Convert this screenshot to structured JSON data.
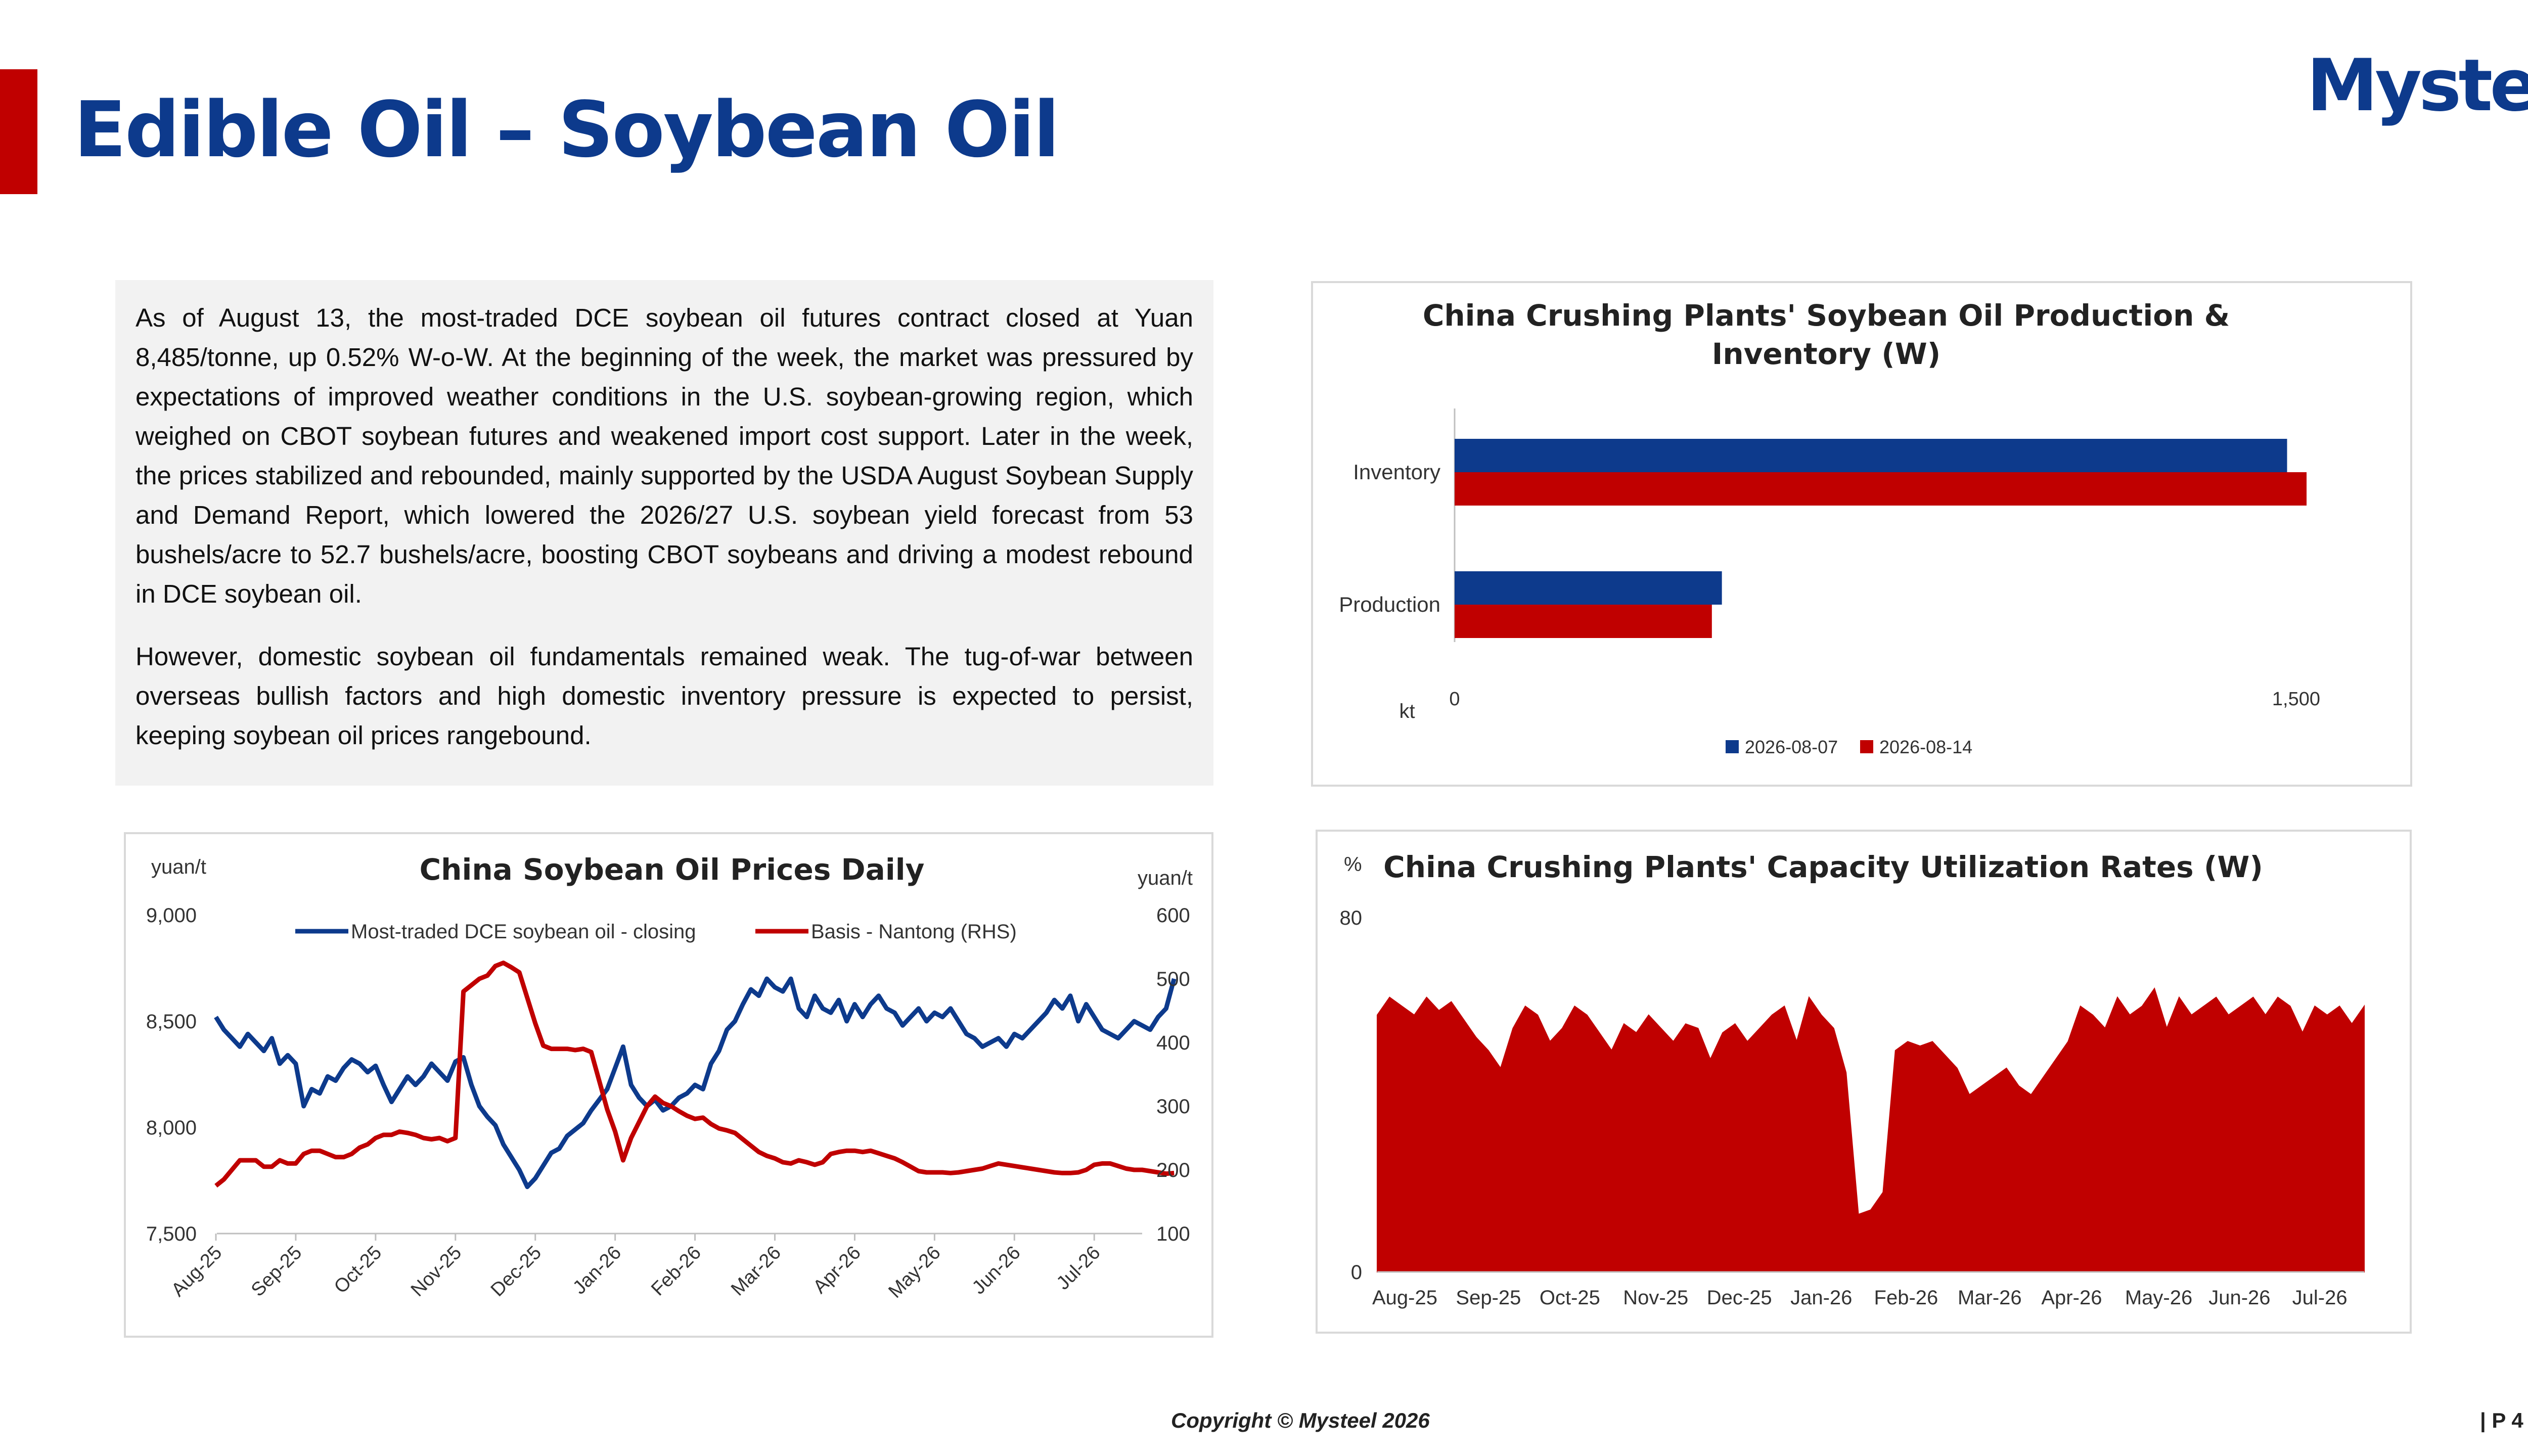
{
  "header": {
    "title": "Edible Oil – Soybean Oil",
    "logo_text": "Mysteel",
    "accent_color": "#c00000",
    "title_color": "#0d3a8c"
  },
  "commentary": {
    "paragraphs": [
      "As of August 13, the most-traded DCE soybean oil futures contract closed at Yuan 8,485/tonne, up 0.52% W-o-W. At the beginning of the week, the market was pressured by expectations of improved weather conditions in the U.S. soybean-growing region, which weighed on CBOT soybean futures and weakened import cost support. Later in the week, the prices stabilized and rebounded, mainly supported by the USDA August Soybean Supply and Demand Report, which lowered the 2026/27 U.S. soybean yield forecast from 53 bushels/acre to 52.7 bushels/acre, boosting CBOT soybeans and driving a modest rebound in DCE soybean oil.",
      "However, domestic soybean oil fundamentals remained weak. The tug-of-war between overseas bullish factors and high domestic inventory pressure is expected to persist, keeping soybean oil prices rangebound."
    ]
  },
  "footer": {
    "copyright": "Copyright © Mysteel 2026",
    "page": "| P 4"
  },
  "chart_data": [
    {
      "id": "production-inventory",
      "type": "bar",
      "orientation": "horizontal",
      "title": "China Crushing Plants' Soybean Oil Production & Inventory (W)",
      "unit_label": "kt",
      "categories": [
        "Inventory",
        "Production"
      ],
      "series": [
        {
          "name": "2026-08-07",
          "color": "#0d3a8c",
          "values": [
            1495,
            480
          ]
        },
        {
          "name": "2026-08-14",
          "color": "#c00000",
          "values": [
            1530,
            462
          ]
        }
      ],
      "xlim": [
        0,
        1500
      ],
      "x_ticks": [
        "0",
        "1,500"
      ],
      "legend": "bottom"
    },
    {
      "id": "prices-daily",
      "type": "line",
      "title": "China Soybean Oil Prices Daily",
      "ylabel_left": "yuan/t",
      "ylabel_right": "yuan/t",
      "ylim_left": [
        7500,
        9000
      ],
      "y_ticks_left": [
        "9,000",
        "8,500",
        "8,000",
        "7,500"
      ],
      "ylim_right": [
        100,
        600
      ],
      "y_ticks_right": [
        "600",
        "500",
        "400",
        "300",
        "200",
        "100"
      ],
      "x_ticks": [
        "Aug-25",
        "Sep-25",
        "Oct-25",
        "Nov-25",
        "Dec-25",
        "Jan-26",
        "Feb-26",
        "Mar-26",
        "Apr-26",
        "May-26",
        "Jun-26",
        "Jul-26"
      ],
      "legend": "top",
      "series": [
        {
          "name": "Most-traded DCE soybean oil - closing",
          "axis": "left",
          "color": "#0d3a8c",
          "x": [
            0,
            0.1,
            0.2,
            0.3,
            0.4,
            0.5,
            0.6,
            0.7,
            0.8,
            0.9,
            1.0,
            1.1,
            1.2,
            1.3,
            1.4,
            1.5,
            1.6,
            1.7,
            1.8,
            1.9,
            2.0,
            2.1,
            2.2,
            2.3,
            2.4,
            2.5,
            2.6,
            2.7,
            2.8,
            2.9,
            3.0,
            3.1,
            3.2,
            3.3,
            3.4,
            3.5,
            3.6,
            3.7,
            3.8,
            3.9,
            4.0,
            4.1,
            4.2,
            4.3,
            4.4,
            4.5,
            4.6,
            4.7,
            4.8,
            4.9,
            5.0,
            5.1,
            5.2,
            5.3,
            5.4,
            5.5,
            5.6,
            5.7,
            5.8,
            5.9,
            6.0,
            6.1,
            6.2,
            6.3,
            6.4,
            6.5,
            6.6,
            6.7,
            6.8,
            6.9,
            7.0,
            7.1,
            7.2,
            7.3,
            7.4,
            7.5,
            7.6,
            7.7,
            7.8,
            7.9,
            8.0,
            8.1,
            8.2,
            8.3,
            8.4,
            8.5,
            8.6,
            8.7,
            8.8,
            8.9,
            9.0,
            9.1,
            9.2,
            9.3,
            9.4,
            9.5,
            9.6,
            9.7,
            9.8,
            9.9,
            10.0,
            10.1,
            10.2,
            10.3,
            10.4,
            10.5,
            10.6,
            10.7,
            10.8,
            10.9,
            11.0,
            11.1,
            11.2,
            11.3,
            11.4,
            11.5,
            11.6,
            11.7,
            11.8,
            11.9,
            12.0
          ],
          "values": [
            8520,
            8460,
            8420,
            8380,
            8440,
            8400,
            8360,
            8420,
            8300,
            8340,
            8300,
            8100,
            8180,
            8160,
            8240,
            8220,
            8280,
            8320,
            8300,
            8260,
            8290,
            8200,
            8120,
            8180,
            8240,
            8200,
            8240,
            8300,
            8260,
            8220,
            8310,
            8330,
            8200,
            8100,
            8050,
            8010,
            7920,
            7860,
            7800,
            7720,
            7760,
            7820,
            7880,
            7900,
            7960,
            7990,
            8020,
            8080,
            8130,
            8180,
            8280,
            8380,
            8200,
            8140,
            8100,
            8130,
            8080,
            8100,
            8140,
            8160,
            8200,
            8180,
            8300,
            8360,
            8460,
            8500,
            8580,
            8650,
            8620,
            8700,
            8660,
            8640,
            8700,
            8560,
            8520,
            8620,
            8560,
            8540,
            8600,
            8500,
            8580,
            8520,
            8580,
            8620,
            8560,
            8540,
            8480,
            8520,
            8560,
            8500,
            8540,
            8520,
            8560,
            8500,
            8440,
            8420,
            8380,
            8400,
            8420,
            8380,
            8440,
            8420,
            8460,
            8500,
            8540,
            8600,
            8560,
            8620,
            8500,
            8580,
            8520,
            8460,
            8440,
            8420,
            8460,
            8500,
            8480,
            8460,
            8520,
            8560,
            8700
          ]
        },
        {
          "name": "Basis - Nantong (RHS)",
          "axis": "right",
          "color": "#c00000",
          "x": [
            0,
            0.1,
            0.2,
            0.3,
            0.4,
            0.5,
            0.6,
            0.7,
            0.8,
            0.9,
            1.0,
            1.1,
            1.2,
            1.3,
            1.4,
            1.5,
            1.6,
            1.7,
            1.8,
            1.9,
            2.0,
            2.1,
            2.2,
            2.3,
            2.4,
            2.5,
            2.6,
            2.7,
            2.8,
            2.9,
            3.0,
            3.1,
            3.2,
            3.3,
            3.4,
            3.5,
            3.6,
            3.7,
            3.8,
            3.9,
            4.0,
            4.1,
            4.2,
            4.3,
            4.4,
            4.5,
            4.6,
            4.7,
            4.8,
            4.9,
            5.0,
            5.1,
            5.2,
            5.3,
            5.4,
            5.5,
            5.6,
            5.7,
            5.8,
            5.9,
            6.0,
            6.1,
            6.2,
            6.3,
            6.4,
            6.5,
            6.6,
            6.7,
            6.8,
            6.9,
            7.0,
            7.1,
            7.2,
            7.3,
            7.4,
            7.5,
            7.6,
            7.7,
            7.8,
            7.9,
            8.0,
            8.1,
            8.2,
            8.3,
            8.4,
            8.5,
            8.6,
            8.7,
            8.8,
            8.9,
            9.0,
            9.1,
            9.2,
            9.3,
            9.4,
            9.5,
            9.6,
            9.7,
            9.8,
            9.9,
            10.0,
            10.1,
            10.2,
            10.3,
            10.4,
            10.5,
            10.6,
            10.7,
            10.8,
            10.9,
            11.0,
            11.1,
            11.2,
            11.3,
            11.4,
            11.5,
            11.6,
            11.7,
            11.8,
            11.9,
            12.0
          ],
          "values": [
            175,
            185,
            200,
            215,
            215,
            215,
            205,
            205,
            215,
            210,
            210,
            225,
            230,
            230,
            225,
            220,
            220,
            225,
            235,
            240,
            250,
            255,
            255,
            260,
            258,
            255,
            250,
            248,
            250,
            245,
            250,
            480,
            490,
            500,
            505,
            520,
            525,
            518,
            510,
            470,
            430,
            395,
            390,
            390,
            390,
            388,
            390,
            385,
            340,
            295,
            260,
            215,
            250,
            275,
            300,
            315,
            305,
            300,
            292,
            285,
            280,
            282,
            272,
            265,
            262,
            258,
            248,
            238,
            228,
            222,
            218,
            212,
            210,
            215,
            212,
            208,
            212,
            225,
            228,
            230,
            230,
            228,
            230,
            226,
            222,
            218,
            212,
            205,
            198,
            196,
            196,
            196,
            195,
            196,
            198,
            200,
            202,
            206,
            210,
            208,
            206,
            204,
            202,
            200,
            198,
            196,
            195,
            195,
            196,
            200,
            208,
            210,
            210,
            206,
            202,
            200,
            200,
            198,
            196,
            194,
            195
          ]
        }
      ]
    },
    {
      "id": "capacity-utilization",
      "type": "area",
      "title": "China Crushing Plants' Capacity Utilization Rates (W)",
      "ylabel": "%",
      "ylim": [
        0,
        80
      ],
      "y_ticks": [
        "80",
        "0"
      ],
      "x_ticks": [
        "Aug-25",
        "Sep-25",
        "Oct-25",
        "Nov-25",
        "Dec-25",
        "Jan-26",
        "Feb-26",
        "Mar-26",
        "Apr-26",
        "May-26",
        "Jun-26",
        "Jul-26"
      ],
      "series": [
        {
          "name": "",
          "color": "#c00000",
          "x": [
            0,
            0.15,
            0.3,
            0.45,
            0.6,
            0.75,
            0.9,
            1.05,
            1.2,
            1.35,
            1.5,
            1.65,
            1.8,
            1.95,
            2.1,
            2.25,
            2.4,
            2.55,
            2.7,
            2.85,
            3.0,
            3.15,
            3.3,
            3.45,
            3.6,
            3.75,
            3.9,
            4.05,
            4.2,
            4.35,
            4.5,
            4.65,
            4.8,
            4.95,
            5.1,
            5.25,
            5.4,
            5.55,
            5.7,
            5.85,
            6.0,
            6.15,
            6.3,
            6.45,
            6.6,
            6.75,
            6.9,
            7.05,
            7.2,
            7.35,
            7.5,
            7.65,
            7.8,
            7.95,
            8.1,
            8.25,
            8.4,
            8.55,
            8.7,
            8.85,
            9.0,
            9.15,
            9.3,
            9.45,
            9.6,
            9.75,
            9.9,
            10.05,
            10.2,
            10.35,
            10.5,
            10.65,
            10.8,
            10.95,
            11.1,
            11.25,
            11.4,
            11.55,
            11.7,
            11.85,
            12.0
          ],
          "values": [
            58,
            62,
            60,
            58,
            62,
            59,
            61,
            57,
            53,
            50,
            46,
            55,
            60,
            58,
            52,
            55,
            60,
            58,
            54,
            50,
            56,
            54,
            58,
            55,
            52,
            56,
            55,
            48,
            54,
            56,
            52,
            55,
            58,
            60,
            52,
            62,
            58,
            55,
            45,
            13,
            14,
            18,
            50,
            52,
            51,
            52,
            49,
            46,
            40,
            42,
            44,
            46,
            42,
            40,
            44,
            48,
            52,
            60,
            58,
            55,
            62,
            58,
            60,
            64,
            55,
            62,
            58,
            60,
            62,
            58,
            60,
            62,
            58,
            62,
            60,
            54,
            60,
            58,
            60,
            56,
            60
          ]
        }
      ]
    }
  ]
}
